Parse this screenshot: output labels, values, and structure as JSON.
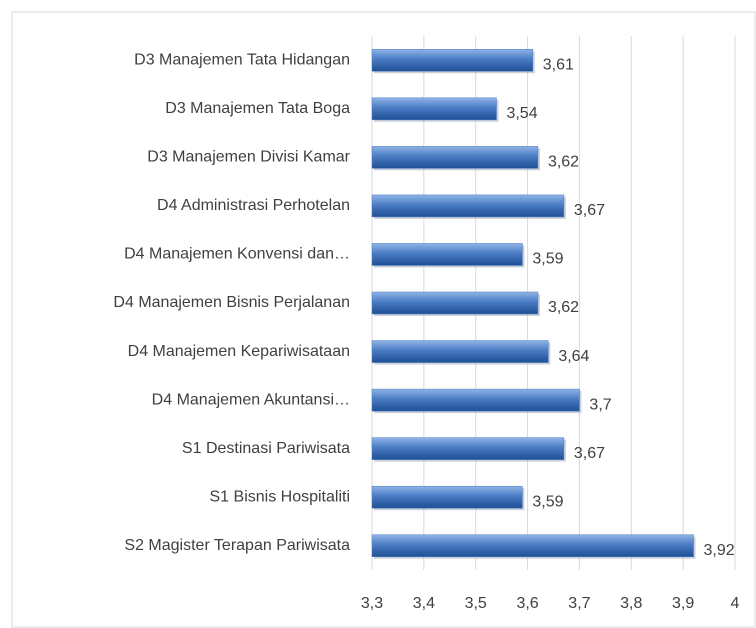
{
  "chart_data": {
    "type": "bar",
    "orientation": "horizontal",
    "categories": [
      "D3 Manajemen Tata Hidangan",
      "D3 Manajemen Tata Boga",
      "D3 Manajemen Divisi Kamar",
      "D4 Administrasi Perhotelan",
      "D4 Manajemen Konvensi dan…",
      "D4 Manajemen Bisnis Perjalanan",
      "D4 Manajemen Kepariwisataan",
      "D4 Manajemen Akuntansi…",
      "S1 Destinasi Pariwisata",
      "S1 Bisnis Hospitaliti",
      "S2 Magister Terapan Pariwisata"
    ],
    "values": [
      3.61,
      3.54,
      3.62,
      3.67,
      3.59,
      3.62,
      3.64,
      3.7,
      3.67,
      3.59,
      3.92
    ],
    "value_labels": [
      "3,61",
      "3,54",
      "3,62",
      "3,67",
      "3,59",
      "3,62",
      "3,64",
      "3,7",
      "3,67",
      "3,59",
      "3,92"
    ],
    "color": "#4a7cc4",
    "xlim": [
      3.3,
      4
    ],
    "xticks": [
      {
        "value": 3.3,
        "label": "3,3"
      },
      {
        "value": 3.4,
        "label": "3,4"
      },
      {
        "value": 3.5,
        "label": "3,5"
      },
      {
        "value": 3.6,
        "label": "3,6"
      },
      {
        "value": 3.7,
        "label": "3,7"
      },
      {
        "value": 3.8,
        "label": "3,8"
      },
      {
        "value": 3.9,
        "label": "3,9"
      },
      4
    ],
    "grid": true
  }
}
